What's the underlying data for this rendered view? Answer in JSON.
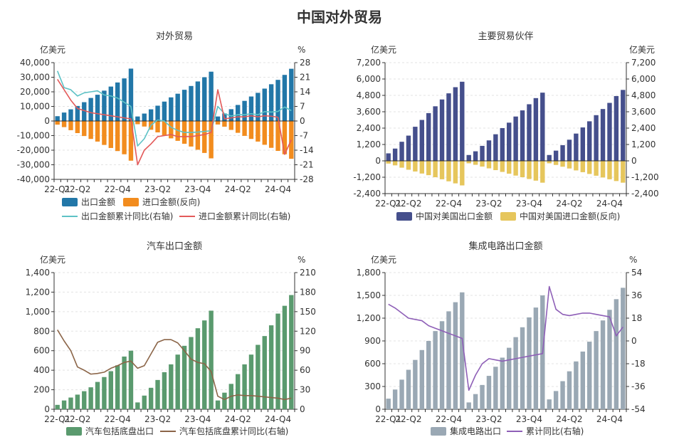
{
  "title": "中国对外贸易",
  "x_ticks": [
    "22-Q1",
    "22-Q2",
    "22-Q4",
    "23-Q2",
    "23-Q4",
    "24-Q2",
    "24-Q4"
  ],
  "chart_data": [
    {
      "id": "trade",
      "type": "bar+line",
      "title": "对外贸易",
      "left_unit": "亿美元",
      "right_unit": "%",
      "ylim": [
        -40000,
        40000
      ],
      "y_ticks": [
        -40000,
        -30000,
        -20000,
        -10000,
        0,
        10000,
        20000,
        30000,
        40000
      ],
      "y2lim": [
        -28,
        28
      ],
      "y2_ticks": [
        -28,
        -21,
        -14,
        -7,
        0,
        7,
        14,
        21,
        28
      ],
      "n": 36,
      "tick_months": [
        0,
        3,
        9,
        15,
        21,
        27,
        33
      ],
      "series": [
        {
          "name": "出口金额",
          "kind": "bar",
          "axis": "left",
          "color": "#2277a8",
          "values": [
            3300,
            5800,
            8000,
            10300,
            12900,
            15800,
            18000,
            20800,
            23600,
            26400,
            29200,
            35900,
            3100,
            5100,
            8000,
            10500,
            13300,
            16200,
            18700,
            21400,
            24000,
            27100,
            30000,
            33800,
            3100,
            5200,
            8100,
            11000,
            13800,
            16800,
            19300,
            22200,
            25200,
            28200,
            31600,
            35800
          ]
        },
        {
          "name": "进口金额(反向)",
          "kind": "bar",
          "axis": "left",
          "color": "#f28c1e",
          "values": [
            -2500,
            -4200,
            -6300,
            -8300,
            -10300,
            -12300,
            -14100,
            -16400,
            -18500,
            -20600,
            -22800,
            -27200,
            -2200,
            -3800,
            -6000,
            -7800,
            -9800,
            -11900,
            -13600,
            -15600,
            -17500,
            -19700,
            -21900,
            -25600,
            -2400,
            -3900,
            -6100,
            -8100,
            -10200,
            -12300,
            -14100,
            -16300,
            -18400,
            -20500,
            -22800,
            -25900
          ]
        },
        {
          "name": "出口金额累计同比(右轴)",
          "kind": "line",
          "axis": "right",
          "color": "#5ec2c6",
          "values": [
            24,
            16,
            15,
            12,
            13.5,
            14,
            14.5,
            12.5,
            12,
            11,
            9,
            7,
            -12,
            -8.5,
            -2,
            0.5,
            0,
            -3,
            -4.5,
            -5.5,
            -5.5,
            -5.3,
            -5,
            -4.7,
            7,
            3.5,
            2.4,
            3,
            3,
            3.5,
            3,
            4.5,
            4.3,
            4.6,
            6.7,
            5
          ]
        },
        {
          "name": "进口金额累计同比(右轴)",
          "kind": "line",
          "axis": "right",
          "color": "#e35a5a",
          "values": [
            20,
            15,
            10,
            6,
            5,
            4,
            3.5,
            3,
            2.5,
            2,
            1.5,
            1,
            -21,
            -14,
            -11,
            -7.5,
            -7,
            -6.5,
            -7.5,
            -7.5,
            -7.5,
            -7,
            -6.5,
            -5.5,
            15,
            1,
            1.5,
            2,
            2,
            2.5,
            2,
            2.5,
            2.3,
            1.8,
            -16,
            -9
          ]
        }
      ]
    },
    {
      "id": "partner",
      "type": "bar",
      "title": "主要贸易伙伴",
      "left_unit": "亿美元",
      "right_unit": "亿美元",
      "ylim": [
        -2400,
        7200
      ],
      "y_ticks": [
        -2400,
        -1200,
        0,
        1200,
        2400,
        3600,
        4800,
        6000,
        7200
      ],
      "y2lim": [
        -2400,
        7200
      ],
      "y2_ticks": [
        -2400,
        -1200,
        0,
        1200,
        2400,
        3600,
        4800,
        6000,
        7200
      ],
      "n": 36,
      "tick_months": [
        0,
        3,
        9,
        15,
        21,
        27,
        33
      ],
      "series": [
        {
          "name": "中国对美国出口金额",
          "kind": "bar",
          "axis": "left",
          "color": "#454f8c",
          "values": [
            550,
            900,
            1400,
            1850,
            2500,
            3000,
            3500,
            4000,
            4500,
            4950,
            5400,
            5800,
            430,
            700,
            1100,
            1500,
            1950,
            2400,
            2800,
            3250,
            3700,
            4150,
            4600,
            5000,
            430,
            750,
            1150,
            1550,
            2000,
            2450,
            2900,
            3350,
            3800,
            4250,
            4750,
            5200
          ]
        },
        {
          "name": "中国对美国进口金额(反向)",
          "kind": "bar",
          "axis": "left",
          "color": "#e6c65c",
          "values": [
            -200,
            -330,
            -500,
            -650,
            -780,
            -930,
            -1050,
            -1200,
            -1350,
            -1500,
            -1650,
            -1800,
            -180,
            -290,
            -420,
            -550,
            -680,
            -810,
            -940,
            -1080,
            -1200,
            -1330,
            -1450,
            -1600,
            -180,
            -300,
            -430,
            -560,
            -700,
            -830,
            -960,
            -1090,
            -1220,
            -1350,
            -1480,
            -1600
          ]
        }
      ]
    },
    {
      "id": "auto",
      "type": "bar+line",
      "title": "汽车出口金额",
      "left_unit": "亿美元",
      "right_unit": "%",
      "ylim": [
        0,
        1400
      ],
      "y_ticks": [
        0,
        200,
        400,
        600,
        800,
        1000,
        1200,
        1400
      ],
      "y2lim": [
        0,
        210
      ],
      "y2_ticks": [
        0,
        30,
        60,
        90,
        120,
        150,
        180,
        210
      ],
      "n": 36,
      "tick_months": [
        0,
        3,
        9,
        15,
        21,
        27,
        33
      ],
      "series": [
        {
          "name": "汽车包括底盘出口",
          "kind": "bar",
          "axis": "left",
          "color": "#5a9a6e",
          "values": [
            45,
            90,
            120,
            150,
            185,
            225,
            280,
            330,
            390,
            450,
            540,
            600,
            70,
            140,
            220,
            300,
            380,
            460,
            560,
            650,
            740,
            830,
            910,
            1010,
            90,
            170,
            260,
            360,
            460,
            560,
            660,
            750,
            860,
            980,
            1060,
            1170
          ]
        },
        {
          "name": "汽车包括底盘累计同比(右轴)",
          "kind": "line",
          "axis": "right",
          "color": "#8b6548",
          "values": [
            122,
            105,
            90,
            65,
            60,
            54,
            55,
            57,
            63,
            67,
            72,
            74,
            63,
            67,
            85,
            103,
            107,
            107,
            102,
            90,
            77,
            72,
            70,
            58,
            20,
            15,
            20,
            22,
            21,
            21,
            20,
            19,
            18,
            17,
            15,
            17
          ]
        }
      ]
    },
    {
      "id": "ic",
      "type": "bar+line",
      "title": "集成电路出口金额",
      "left_unit": "亿美元",
      "right_unit": "%",
      "ylim": [
        0,
        1800
      ],
      "y_ticks": [
        0,
        300,
        600,
        900,
        1200,
        1500,
        1800
      ],
      "y2lim": [
        -54,
        54
      ],
      "y2_ticks": [
        -54,
        -36,
        -18,
        0,
        18,
        36,
        54
      ],
      "n": 36,
      "tick_months": [
        0,
        3,
        9,
        15,
        21,
        27,
        33
      ],
      "series": [
        {
          "name": "集成电路出口",
          "kind": "bar",
          "axis": "left",
          "color": "#9aa8b4",
          "values": [
            140,
            260,
            390,
            520,
            650,
            780,
            900,
            1030,
            1160,
            1290,
            1410,
            1540,
            90,
            200,
            320,
            440,
            560,
            680,
            810,
            950,
            1080,
            1210,
            1340,
            1500,
            130,
            240,
            370,
            500,
            630,
            760,
            890,
            1030,
            1170,
            1310,
            1450,
            1600
          ]
        },
        {
          "name": "累计同比(右轴)",
          "kind": "line",
          "axis": "right",
          "color": "#8e5fb7",
          "values": [
            29,
            26,
            22,
            18,
            17,
            16,
            12,
            10,
            8,
            6,
            4,
            2,
            -39,
            -27,
            -18,
            -14,
            -15,
            -16,
            -15,
            -14,
            -13,
            -12,
            -11,
            -10,
            43,
            25,
            21,
            20,
            21,
            22,
            22,
            21,
            20,
            19,
            4,
            11
          ]
        }
      ]
    }
  ]
}
